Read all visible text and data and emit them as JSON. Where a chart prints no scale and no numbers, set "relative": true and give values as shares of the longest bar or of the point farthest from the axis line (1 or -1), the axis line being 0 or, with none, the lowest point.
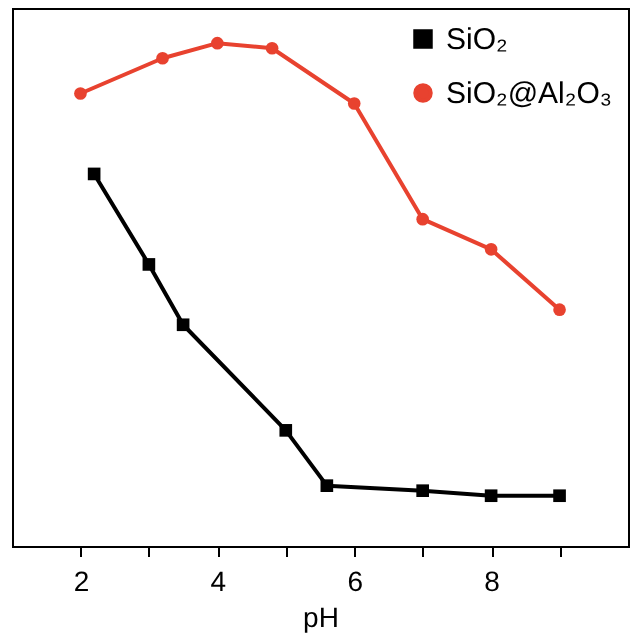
{
  "chart_data": {
    "type": "line",
    "xlabel": "pH",
    "relative": true,
    "xlim": [
      1,
      10
    ],
    "xticks": [
      2,
      {
        "value": 3,
        "label": null
      },
      4,
      {
        "value": 5,
        "label": null
      },
      6,
      {
        "value": 7,
        "label": null
      },
      8,
      {
        "value": 9,
        "label": null
      }
    ],
    "legend": "top right",
    "series": [
      {
        "name": "SiO₂",
        "color": "#000000",
        "marker": "square",
        "x": [
          2.2,
          3.0,
          3.5,
          5.0,
          5.6,
          7.0,
          8.0,
          9.0
        ],
        "values": [
          0.74,
          0.56,
          0.44,
          0.23,
          0.12,
          0.11,
          0.1,
          0.1
        ]
      },
      {
        "name": "SiO₂@Al₂O₃",
        "color": "#e8422f",
        "marker": "circle",
        "x": [
          2.0,
          3.2,
          4.0,
          4.8,
          6.0,
          7.0,
          8.0,
          9.0
        ],
        "values": [
          0.9,
          0.97,
          1.0,
          0.99,
          0.88,
          0.65,
          0.59,
          0.47
        ]
      }
    ]
  }
}
